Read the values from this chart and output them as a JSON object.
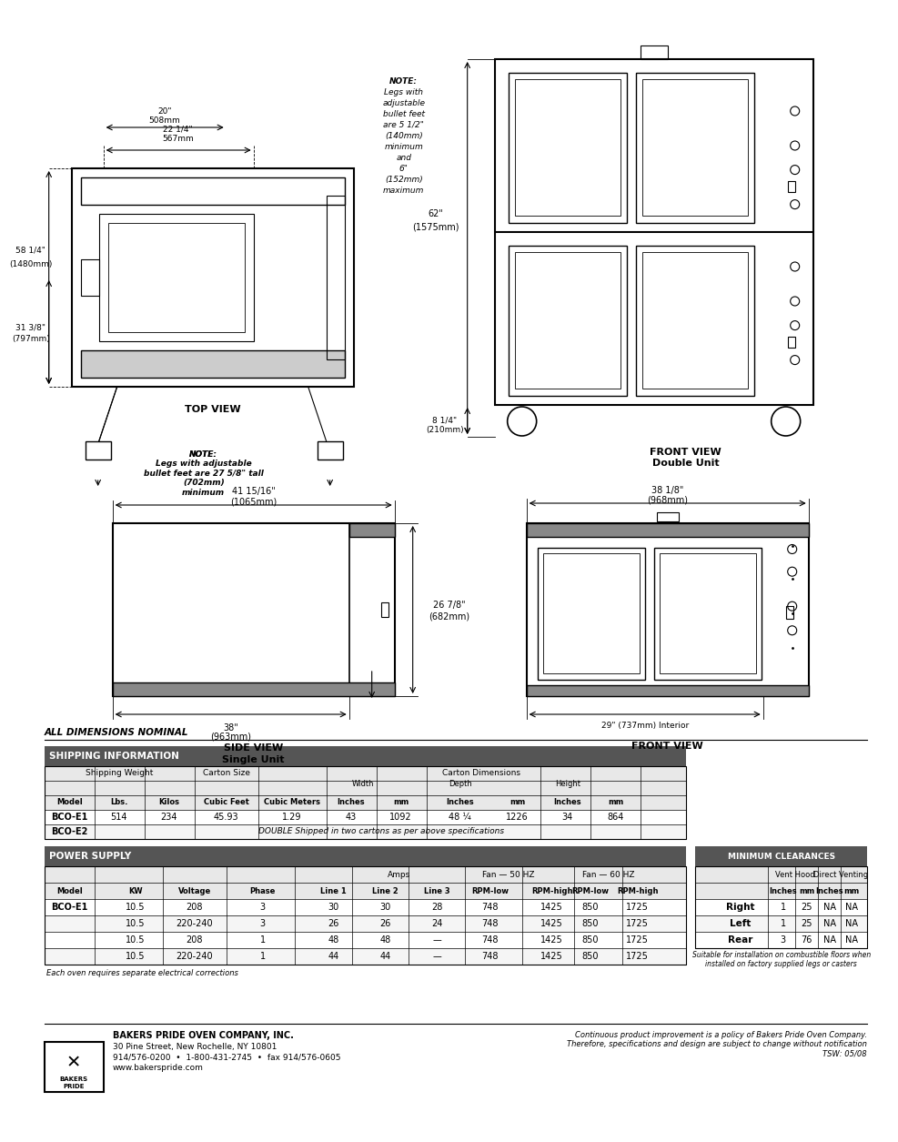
{
  "page_bg": "#ffffff",
  "title_text": "ALL DIMENSIONS NOMINAL",
  "shipping_header": "SHIPPING INFORMATION",
  "power_header": "POWER SUPPLY",
  "clearances_header": "MINIMUM CLEARANCES",
  "top_view_label": "TOP VIEW",
  "front_view_double_label": "FRONT VIEW\nDouble Unit",
  "side_view_label": "SIDE VIEW\nSingle Unit",
  "front_view_single_label": "FRONT VIEW",
  "dim_22_14": "22 1/4\"\n567mm",
  "dim_20": "20\"\n508mm",
  "dim_58_14": "58 1/4\"\n(1480mm)",
  "dim_31_38": "31 3/8\"\n(797mm)",
  "dim_62": "62\"\n(1575mm)",
  "dim_8_14": "8 1/4\"\n(210mm)",
  "dim_41_1516": "41 15/16\"\n(1065mm)",
  "dim_26_78": "26 7/8\"\n(682mm)",
  "dim_38_side": "38\"\n(963mm)",
  "dim_38_18": "38 1/8\"\n(968mm)",
  "dim_29": "29\" (737mm) Interior",
  "note_top": "NOTE:\nLegs with\nadjustable\nbullet feet\nare 5 1/2\"\n(140mm)\nminimum\nand\n6\"\n(152mm)\nmaximum",
  "note_bottom": "NOTE:\nLegs with adjustable\nbullet feet are 27 5/8\" tall\n(702mm)\nminimum",
  "company_name": "BAKERS PRIDE OVEN COMPANY, INC.",
  "company_addr1": "30 Pine Street, New Rochelle, NY 10801",
  "company_addr2": "914/576-0200  •  1-800-431-2745  •  fax 914/576-0605",
  "company_addr3": "www.bakerspride.com",
  "disclaimer": "Continuous product improvement is a policy of Bakers Pride Oven Company.\nTherefore, specifications and design are subject to change without notification\nTSW: 05/08",
  "shipping_rows": [
    [
      "Model",
      "Lbs.",
      "Kilos",
      "Cubic Feet",
      "Cubic Meters",
      "Inches",
      "mm",
      "Inches",
      "mm",
      "Inches",
      "mm"
    ],
    [
      "BCO-E1",
      "514",
      "234",
      "45.93",
      "1.29",
      "43",
      "1092",
      "48 ¼",
      "1226",
      "34",
      "864"
    ],
    [
      "BCO-E2",
      "DOUBLE Shipped in two cartons as per above specifications",
      "",
      "",
      "",
      "",
      "",
      "",
      "",
      "",
      ""
    ]
  ],
  "power_rows": [
    [
      "Model",
      "KW",
      "Voltage",
      "Phase",
      "Line 1",
      "Line 2",
      "Line 3",
      "RPM-low",
      "RPM-high",
      "RPM-low",
      "RPM-high"
    ],
    [
      "BCO-E1",
      "10.5",
      "208",
      "3",
      "30",
      "30",
      "28",
      "748",
      "1425",
      "850",
      "1725"
    ],
    [
      "",
      "10.5",
      "220-240",
      "3",
      "26",
      "26",
      "24",
      "748",
      "1425",
      "850",
      "1725"
    ],
    [
      "",
      "10.5",
      "208",
      "1",
      "48",
      "48",
      "—",
      "748",
      "1425",
      "850",
      "1725"
    ],
    [
      "",
      "10.5",
      "220-240",
      "1",
      "44",
      "44",
      "—",
      "748",
      "1425",
      "850",
      "1725"
    ]
  ],
  "clearances_rows": [
    [
      "",
      "Inches",
      "mm",
      "Inches",
      "mm"
    ],
    [
      "Right",
      "1",
      "25",
      "NA",
      "NA"
    ],
    [
      "Left",
      "1",
      "25",
      "NA",
      "NA"
    ],
    [
      "Rear",
      "3",
      "76",
      "NA",
      "NA"
    ]
  ],
  "header_bg": "#4a4a4a",
  "header_fg": "#ffffff",
  "subheader_bg": "#d0d0d0",
  "row_bg1": "#ffffff",
  "row_bg2": "#f0f0f0"
}
